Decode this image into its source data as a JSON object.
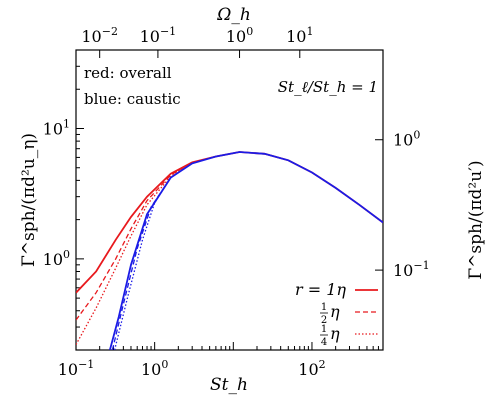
{
  "chart_data": {
    "type": "line",
    "x_scale": "log",
    "y_scale": "log",
    "xlim": [
      0.1,
      800
    ],
    "ylim": [
      0.2,
      40
    ],
    "x_ticks": [
      {
        "value": 0.1,
        "base": "10",
        "exp": "−1"
      },
      {
        "value": 1,
        "base": "10",
        "exp": "0"
      },
      {
        "value": 100,
        "base": "10",
        "exp": "2"
      }
    ],
    "y_ticks": [
      {
        "value": 1,
        "base": "10",
        "exp": "0"
      },
      {
        "value": 10,
        "base": "10",
        "exp": "1"
      }
    ],
    "top_axis": {
      "label": "Ω_h",
      "ticks": [
        {
          "label_base": "10",
          "label_exp": "−2",
          "st_value": 0.2
        },
        {
          "label_base": "10",
          "label_exp": "−1",
          "st_value": 1.1
        },
        {
          "label_base": "10",
          "label_exp": "0",
          "st_value": 12
        },
        {
          "label_base": "10",
          "label_exp": "1",
          "st_value": 70
        }
      ]
    },
    "right_axis": {
      "label": "Γ^sph/(πd²u′)",
      "ticks": [
        {
          "label_base": "10",
          "label_exp": "0",
          "y_value": 8.2
        },
        {
          "label_base": "10",
          "label_exp": "−1",
          "y_value": 0.82
        }
      ]
    },
    "xlabel": "St_h",
    "ylabel": "Γ^sph/(πd²u_η)",
    "annotations": {
      "line1": "red: overall",
      "line2": "blue: caustic",
      "ratio": "St_ℓ/St_h = 1"
    },
    "legend": {
      "placement": "bottom-right",
      "entries": [
        {
          "label": "r = 1η",
          "style": "solid"
        },
        {
          "label_num": "1",
          "label_den": "2",
          "label_suffix": "η",
          "style": "dashed"
        },
        {
          "label_num": "1",
          "label_den": "4",
          "label_suffix": "η",
          "style": "dotted"
        }
      ]
    },
    "colors": {
      "overall": "#e8191d",
      "caustic": "#1b1be6"
    },
    "series": [
      {
        "group": "overall",
        "style": "solid",
        "x": [
          0.1,
          0.18,
          0.32,
          0.5,
          0.8,
          1.6,
          3.0,
          6.0,
          12.0,
          25.0,
          50.0,
          100.0,
          200.0,
          400.0,
          800.0
        ],
        "y": [
          0.55,
          0.8,
          1.4,
          2.1,
          3.0,
          4.5,
          5.5,
          6.1,
          6.6,
          6.4,
          5.7,
          4.6,
          3.5,
          2.6,
          1.9
        ]
      },
      {
        "group": "overall",
        "style": "dashed",
        "x": [
          0.1,
          0.18,
          0.32,
          0.5,
          0.8,
          1.6,
          3.0
        ],
        "y": [
          0.34,
          0.55,
          1.0,
          1.7,
          2.8,
          4.4,
          5.5
        ]
      },
      {
        "group": "overall",
        "style": "dotted",
        "x": [
          0.1,
          0.18,
          0.32,
          0.5,
          0.8,
          1.6,
          3.0
        ],
        "y": [
          0.22,
          0.42,
          0.85,
          1.5,
          2.6,
          4.3,
          5.5
        ]
      },
      {
        "group": "caustic",
        "style": "solid",
        "x": [
          0.27,
          0.35,
          0.5,
          0.8,
          1.6,
          3.0,
          6.0,
          12.0,
          25.0,
          50.0,
          100.0,
          200.0,
          400.0,
          800.0
        ],
        "y": [
          0.2,
          0.36,
          0.9,
          2.2,
          4.2,
          5.4,
          6.1,
          6.6,
          6.4,
          5.7,
          4.6,
          3.5,
          2.6,
          1.9
        ]
      },
      {
        "group": "caustic",
        "style": "dashed",
        "x": [
          0.29,
          0.4,
          0.6,
          0.9,
          1.6
        ],
        "y": [
          0.2,
          0.45,
          1.2,
          2.5,
          4.2
        ]
      },
      {
        "group": "caustic",
        "style": "dotted",
        "x": [
          0.31,
          0.45,
          0.7,
          1.0,
          1.6
        ],
        "y": [
          0.2,
          0.5,
          1.4,
          2.7,
          4.2
        ]
      }
    ]
  }
}
